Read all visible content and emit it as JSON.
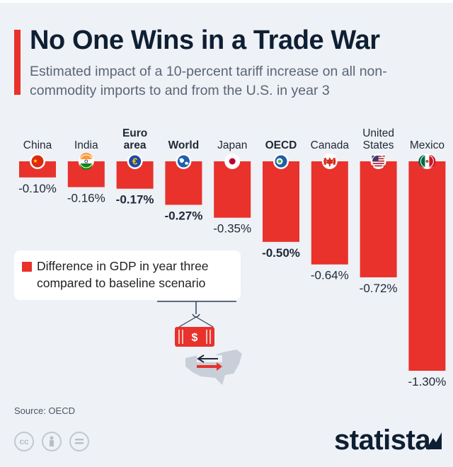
{
  "header": {
    "title": "No One Wins in a Trade War",
    "subtitle": "Estimated impact of a 10-percent tariff increase on all non-commodity imports to and from the U.S. in year 3"
  },
  "legend": {
    "label": "Difference in GDP in year three compared to baseline scenario"
  },
  "footer": {
    "source": "Source: OECD",
    "brand": "statista",
    "license_icons": [
      "creative-commons-icon",
      "attribution-icon",
      "no-derivatives-icon"
    ]
  },
  "colors": {
    "bar": "#e8322b",
    "background": "#eef1f6",
    "title": "#0f1f33"
  },
  "chart_data": {
    "type": "bar",
    "orientation": "vertical",
    "direction": "downward-from-top-baseline",
    "categories": [
      "China",
      "India",
      "Euro area",
      "World",
      "Japan",
      "OECD",
      "Canada",
      "United States",
      "Mexico"
    ],
    "bold_categories": [
      "Euro area",
      "World",
      "OECD"
    ],
    "series": [
      {
        "values": [
          -0.1,
          -0.16,
          -0.17,
          -0.27,
          -0.35,
          -0.5,
          -0.64,
          -0.72,
          -1.3
        ],
        "value_labels": [
          "-0.10%",
          "-0.16%",
          "-0.17%",
          "-0.27%",
          "-0.35%",
          "-0.50%",
          "-0.64%",
          "-0.72%",
          "-1.30%"
        ]
      }
    ],
    "icons": [
      "china-flag-icon",
      "india-flag-icon",
      "euro-icon",
      "globe-icon",
      "japan-flag-icon",
      "oecd-icon",
      "canada-flag-icon",
      "us-flag-icon",
      "mexico-flag-icon"
    ],
    "ylim": [
      -1.3,
      0
    ],
    "grid": false,
    "legend_position": "left-middle"
  }
}
